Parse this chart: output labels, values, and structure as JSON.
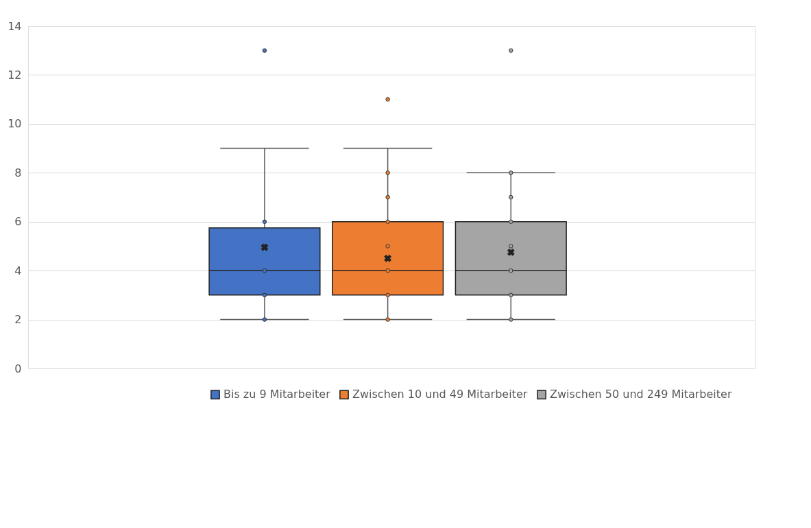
{
  "chart_data": {
    "type": "box",
    "categories": [
      null
    ],
    "series": [
      {
        "name": "Bis zu 9 Mitarbeiter",
        "color": "#4472c4",
        "boxes": [
          {
            "low": 2,
            "q1": 3,
            "median": 4,
            "q3": 5.75,
            "high": 9,
            "mean": 4.95,
            "outliers": [
              2,
              3,
              4,
              5,
              6,
              13
            ]
          }
        ]
      },
      {
        "name": "Zwischen 10 und 49 Mitarbeiter",
        "color": "#ed7d31",
        "boxes": [
          {
            "low": 2,
            "q1": 3,
            "median": 4,
            "q3": 6,
            "high": 9,
            "mean": 4.5,
            "outliers": [
              2,
              3,
              4,
              5,
              6,
              7,
              8,
              11
            ]
          }
        ]
      },
      {
        "name": "Zwischen 50 und 249 Mitarbeiter",
        "color": "#a5a5a5",
        "boxes": [
          {
            "low": 2,
            "q1": 3,
            "median": 4,
            "q3": 6,
            "high": 8,
            "mean": 4.75,
            "outliers": [
              2,
              3,
              4,
              5,
              6,
              7,
              8,
              13
            ]
          }
        ]
      }
    ],
    "ylim": [
      0,
      14
    ],
    "yticks": [
      0,
      2,
      4,
      6,
      8,
      10,
      12,
      14
    ],
    "grid": "y",
    "legend": "bottom",
    "tick_labels": "y"
  }
}
